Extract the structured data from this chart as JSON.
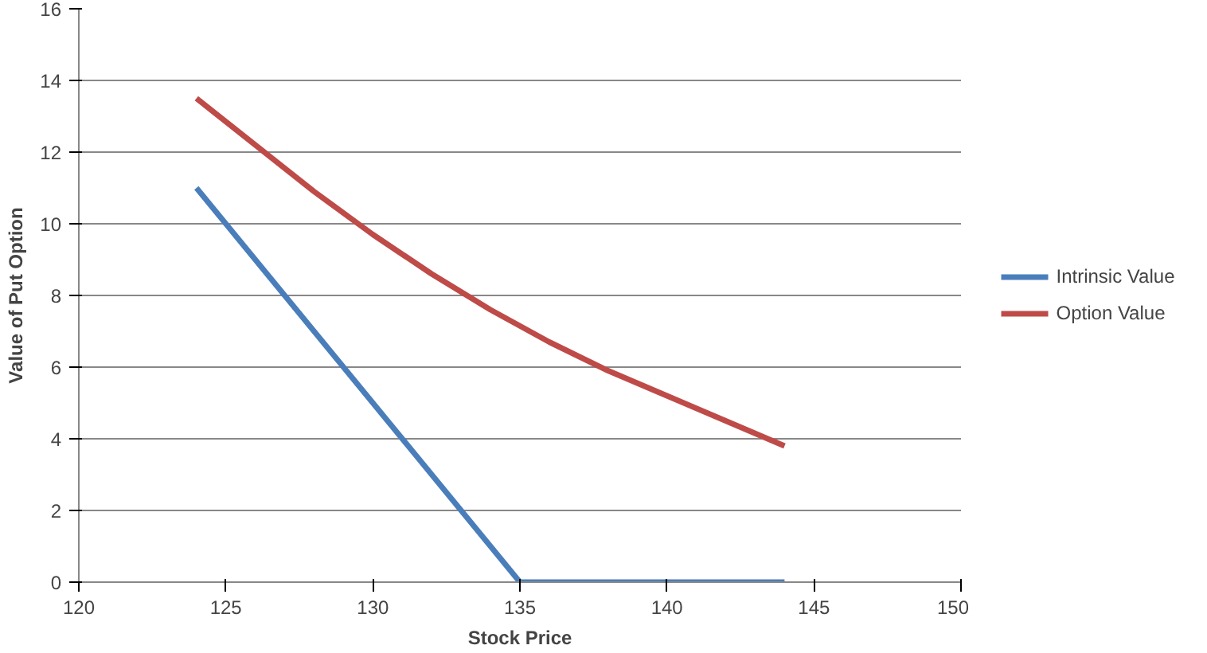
{
  "chart_data": {
    "type": "line",
    "xlabel": "Stock Price",
    "ylabel": "Value of Put Option",
    "xlim": [
      120,
      150
    ],
    "xticks": [
      120,
      125,
      130,
      135,
      140,
      145,
      150
    ],
    "ylim": [
      0,
      16
    ],
    "yticks": [
      0,
      2,
      4,
      6,
      8,
      10,
      12,
      14,
      16
    ],
    "grid": "y",
    "legend": "right",
    "marker": "none",
    "line_style": "solid",
    "series": [
      {
        "name": "Intrinsic Value",
        "color": "#4a7ebb",
        "x": [
          124,
          135,
          144
        ],
        "values": [
          11,
          0,
          0
        ]
      },
      {
        "name": "Option Value",
        "color": "#be4b48",
        "x": [
          124,
          126,
          128,
          130,
          132,
          134,
          136,
          138,
          140,
          142,
          144
        ],
        "values": [
          13.5,
          12.2,
          10.9,
          9.7,
          8.6,
          7.6,
          6.7,
          5.9,
          5.2,
          4.5,
          3.8
        ]
      }
    ]
  }
}
